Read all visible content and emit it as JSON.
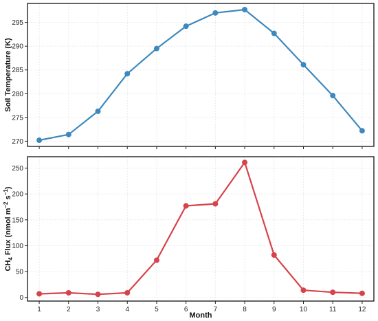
{
  "chart_data": [
    {
      "type": "line",
      "ylabel": "Soil Temperature (K)",
      "x": [
        1,
        2,
        3,
        4,
        5,
        6,
        7,
        8,
        9,
        10,
        11,
        12
      ],
      "series": [
        {
          "values": [
            270.2,
            271.4,
            276.3,
            284.2,
            289.5,
            294.2,
            297.0,
            297.7,
            292.7,
            286.1,
            279.6,
            272.2
          ],
          "color": "#3d88bd"
        }
      ],
      "yticks": [
        270,
        275,
        280,
        285,
        290,
        295
      ],
      "ylim": [
        268.9,
        299.0
      ],
      "xlim": [
        0.6,
        12.4
      ],
      "grid": true
    },
    {
      "type": "line",
      "ylabel_prefix": "CH",
      "ylabel_sub": "4",
      "ylabel_main": " Flux (nmol m",
      "ylabel_sup1": "−2",
      "ylabel_mid": " s",
      "ylabel_sup2": "−1",
      "ylabel_end": ")",
      "xlabel": "Month",
      "x": [
        1,
        2,
        3,
        4,
        5,
        6,
        7,
        8,
        9,
        10,
        11,
        12
      ],
      "xticks": [
        "1",
        "2",
        "3",
        "4",
        "5",
        "6",
        "7",
        "8",
        "9",
        "10",
        "11",
        "12"
      ],
      "series": [
        {
          "values": [
            7,
            9,
            6,
            9,
            72,
            177,
            181,
            261,
            82,
            14,
            10,
            8
          ],
          "color": "#d6434a"
        }
      ],
      "yticks": [
        0,
        50,
        100,
        150,
        200,
        250
      ],
      "ylim": [
        -7,
        272
      ],
      "xlim": [
        0.6,
        12.4
      ],
      "grid": true
    }
  ]
}
